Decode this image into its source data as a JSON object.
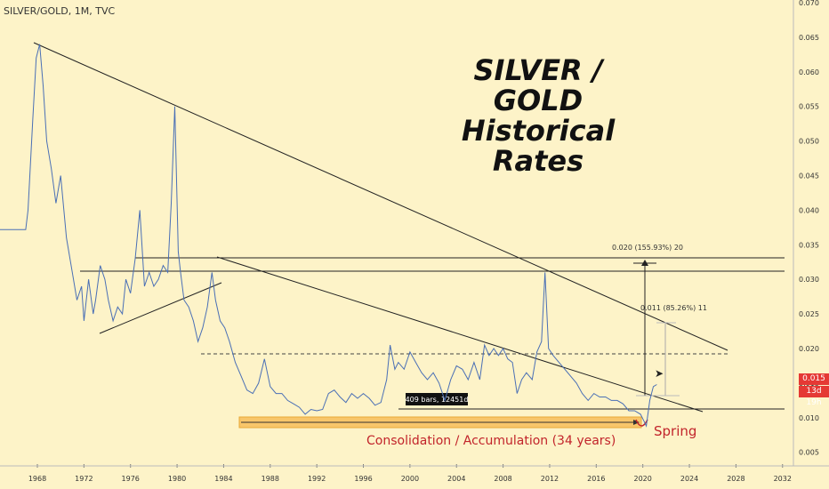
{
  "header": "SILVER/GOLD, 1M, TVC",
  "title_line1": "SILVER / GOLD",
  "title_line2": "Historical Rates",
  "price_label": "0.015",
  "countdown_label": "13d 19h",
  "bars_label": "409 bars, 12451d",
  "consolidation_label": "Consolidation / Accumulation  (34 years)",
  "spring_label": "Spring",
  "measure_label_1": "0.020 (155.93%) 20",
  "measure_label_2": "0.011 (85.26%) 11",
  "colors": {
    "line": "#4a6fb5",
    "red_badge": "#e53935",
    "text_red": "#c2242b",
    "band": "#f8c66a"
  },
  "chart_data": {
    "type": "line",
    "title": "SILVER / GOLD Historical Rates",
    "x_ticks": [
      "1968",
      "1972",
      "1976",
      "1980",
      "1984",
      "1988",
      "1992",
      "1996",
      "2000",
      "2004",
      "2008",
      "2012",
      "2016",
      "2020",
      "2024",
      "2028",
      "2032"
    ],
    "y_ticks": [
      "0.070",
      "0.065",
      "0.060",
      "0.055",
      "0.050",
      "0.045",
      "0.040",
      "0.035",
      "0.030",
      "0.025",
      "0.020",
      "0.015",
      "0.010",
      "0.005"
    ],
    "ylim": [
      0.003,
      0.071
    ],
    "xlim": [
      1964.6,
      2033.7
    ],
    "series": [
      {
        "x": [
          1964.6,
          1966.5,
          1967.0,
          1967.2,
          1967.6,
          1967.9,
          1968.2,
          1968.5,
          1968.8,
          1969.2,
          1969.6,
          1970.0,
          1970.5,
          1971.0,
          1971.4,
          1971.8,
          1972.0,
          1972.4,
          1972.8,
          1973.0,
          1973.4,
          1973.8,
          1974.1,
          1974.5,
          1974.9,
          1975.3,
          1975.6,
          1976.0,
          1976.4,
          1976.8,
          1977.2,
          1977.6,
          1978.0,
          1978.4,
          1978.8,
          1979.2,
          1979.5,
          1979.8,
          1980.1,
          1980.3,
          1980.6,
          1981.0,
          1981.4,
          1981.8,
          1982.2,
          1982.6,
          1983.0,
          1983.3,
          1983.7,
          1984.1,
          1984.5,
          1985.0,
          1985.5,
          1986.0,
          1986.5,
          1987.0,
          1987.5,
          1988.0,
          1988.5,
          1989.0,
          1989.5,
          1990.0,
          1990.5,
          1991.0,
          1991.5,
          1992.0,
          1992.5,
          1993.0,
          1993.5,
          1994.0,
          1994.5,
          1995.0,
          1995.5,
          1996.0,
          1996.5,
          1997.0,
          1997.5,
          1998.0,
          1998.3,
          1998.7,
          1999.0,
          1999.5,
          2000.0,
          2000.5,
          2001.0,
          2001.5,
          2002.0,
          2002.5,
          2003.0,
          2003.5,
          2004.0,
          2004.5,
          2005.0,
          2005.5,
          2006.0,
          2006.4,
          2006.8,
          2007.2,
          2007.6,
          2008.0,
          2008.4,
          2008.8,
          2009.2,
          2009.6,
          2010.0,
          2010.5,
          2010.9,
          2011.3,
          2011.6,
          2011.9,
          2012.3,
          2012.8,
          2013.3,
          2013.8,
          2014.3,
          2014.8,
          2015.3,
          2015.8,
          2016.3,
          2016.8,
          2017.3,
          2017.8,
          2018.3,
          2018.8,
          2019.3,
          2019.8,
          2020.1,
          2020.3,
          2020.6,
          2020.9,
          2021.2
        ],
        "y": [
          0.0372,
          0.0372,
          0.0372,
          0.04,
          0.053,
          0.062,
          0.064,
          0.058,
          0.05,
          0.046,
          0.041,
          0.045,
          0.036,
          0.031,
          0.027,
          0.029,
          0.024,
          0.03,
          0.025,
          0.027,
          0.032,
          0.03,
          0.027,
          0.024,
          0.026,
          0.025,
          0.03,
          0.028,
          0.033,
          0.04,
          0.029,
          0.031,
          0.029,
          0.03,
          0.032,
          0.031,
          0.041,
          0.055,
          0.034,
          0.031,
          0.027,
          0.026,
          0.024,
          0.021,
          0.023,
          0.026,
          0.031,
          0.027,
          0.024,
          0.023,
          0.021,
          0.018,
          0.016,
          0.014,
          0.0135,
          0.015,
          0.0185,
          0.0145,
          0.0135,
          0.0135,
          0.0125,
          0.012,
          0.0115,
          0.0105,
          0.0112,
          0.011,
          0.0112,
          0.0135,
          0.014,
          0.013,
          0.0122,
          0.0135,
          0.0128,
          0.0135,
          0.0128,
          0.0118,
          0.0122,
          0.0155,
          0.0205,
          0.017,
          0.018,
          0.017,
          0.0195,
          0.018,
          0.0165,
          0.0155,
          0.0165,
          0.015,
          0.0125,
          0.0155,
          0.0175,
          0.017,
          0.0155,
          0.018,
          0.0155,
          0.0205,
          0.019,
          0.02,
          0.019,
          0.02,
          0.0185,
          0.018,
          0.0135,
          0.0155,
          0.0165,
          0.0155,
          0.0195,
          0.021,
          0.031,
          0.02,
          0.019,
          0.018,
          0.017,
          0.016,
          0.015,
          0.0135,
          0.0125,
          0.0135,
          0.013,
          0.013,
          0.0125,
          0.0125,
          0.012,
          0.011,
          0.011,
          0.0105,
          0.0095,
          0.0088,
          0.0125,
          0.0145,
          0.0148
        ]
      }
    ]
  }
}
